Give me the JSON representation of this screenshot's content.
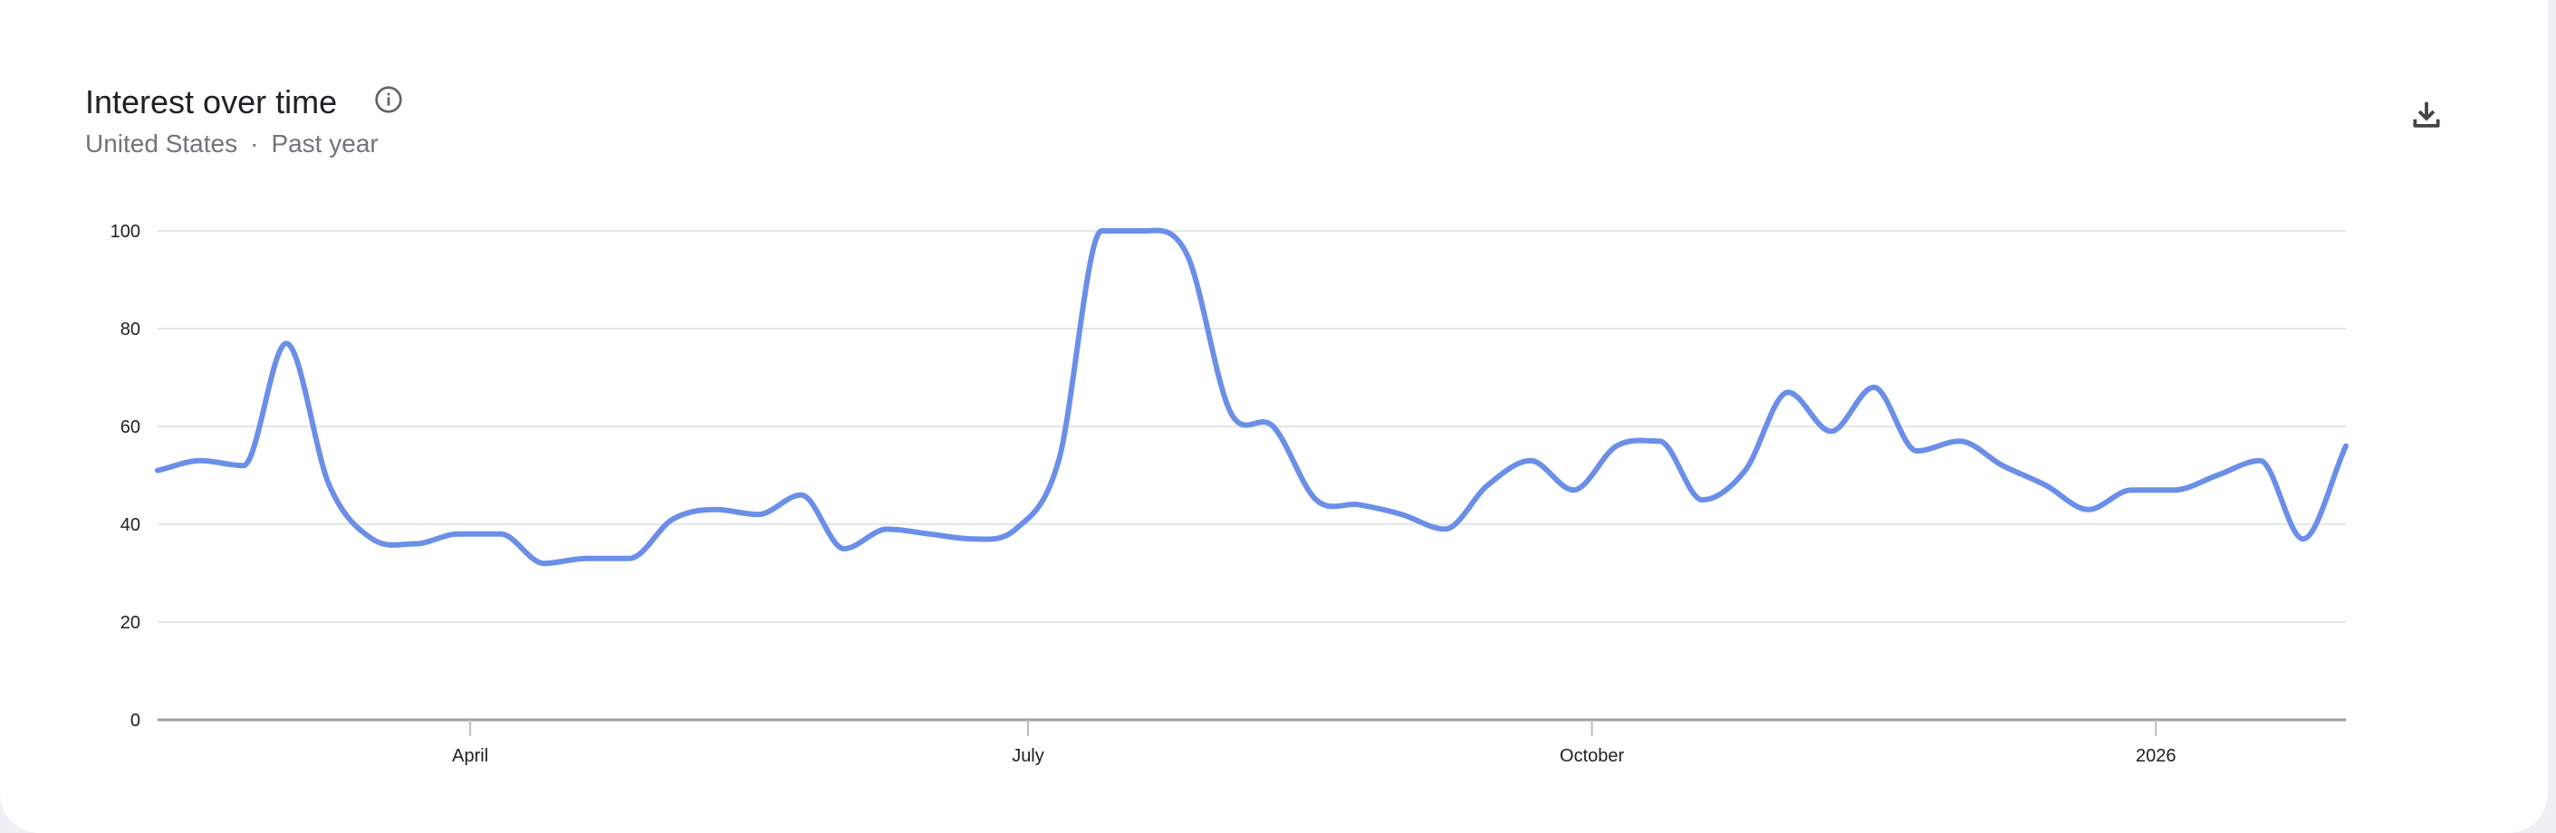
{
  "header": {
    "title": "Interest over time",
    "region": "United States",
    "separator": "·",
    "period": "Past year",
    "info_icon": "info-icon",
    "download_icon": "download-icon"
  },
  "colors": {
    "line": "#6b8fe8",
    "grid": "#e6e6e6",
    "axis": "#9e9e9e",
    "text": "#202124",
    "subtext": "#70757a"
  },
  "chart_data": {
    "type": "line",
    "title": "Interest over time",
    "xlabel": "",
    "ylabel": "",
    "ylim": [
      0,
      100
    ],
    "yticks": [
      "0",
      "20",
      "40",
      "60",
      "80",
      "100"
    ],
    "xticks": [
      {
        "label": "April",
        "date": "2025-04-01"
      },
      {
        "label": "July",
        "date": "2025-07-01"
      },
      {
        "label": "October",
        "date": "2025-10-01"
      },
      {
        "label": "2026",
        "date": "2026-01-01"
      }
    ],
    "grid": true,
    "legend": "none",
    "x": [
      "2025-02-09",
      "2025-02-16",
      "2025-02-23",
      "2025-03-02",
      "2025-03-09",
      "2025-03-16",
      "2025-03-23",
      "2025-03-30",
      "2025-04-06",
      "2025-04-13",
      "2025-04-20",
      "2025-04-27",
      "2025-05-04",
      "2025-05-11",
      "2025-05-18",
      "2025-05-25",
      "2025-06-01",
      "2025-06-08",
      "2025-06-15",
      "2025-06-22",
      "2025-06-29",
      "2025-07-06",
      "2025-07-13",
      "2025-07-20",
      "2025-07-27",
      "2025-08-03",
      "2025-08-10",
      "2025-08-17",
      "2025-08-24",
      "2025-08-31",
      "2025-09-07",
      "2025-09-14",
      "2025-09-21",
      "2025-09-28",
      "2025-10-05",
      "2025-10-12",
      "2025-10-19",
      "2025-10-26",
      "2025-11-02",
      "2025-11-09",
      "2025-11-16",
      "2025-11-23",
      "2025-11-30",
      "2025-12-07",
      "2025-12-14",
      "2025-12-21",
      "2025-12-28",
      "2026-01-04",
      "2026-01-11",
      "2026-01-18",
      "2026-01-25",
      "2026-02-01"
    ],
    "series": [
      {
        "values": [
          51,
          53,
          52,
          77,
          48,
          37,
          36,
          38,
          38,
          32,
          33,
          33,
          41,
          43,
          42,
          46,
          35,
          39,
          38,
          37,
          39,
          53,
          100,
          100,
          95,
          63,
          60,
          45,
          44,
          42,
          39,
          48,
          53,
          47,
          56,
          57,
          45,
          51,
          67,
          59,
          68,
          55,
          57,
          52,
          48,
          43,
          47,
          47,
          50,
          53,
          37,
          56
        ]
      }
    ]
  }
}
